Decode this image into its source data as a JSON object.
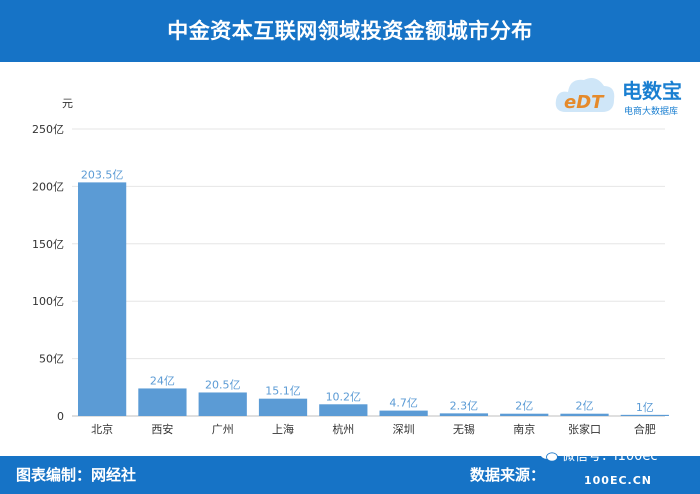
{
  "header": {
    "title": "中金资本互联网领域投资金额城市分布"
  },
  "logo": {
    "mark": "eDT",
    "name": "电数宝",
    "tagline": "电商大数据库"
  },
  "footer": {
    "left_label": "图表编制：网经社",
    "right_label": "数据来源：",
    "wechat_label": "微信号：i100ec",
    "watermark": "100EC.CN"
  },
  "colors": {
    "header_bg": "#1673c6",
    "bar": "#5b9bd5",
    "label": "#5b9bd5",
    "grid": "#e6e6e6"
  },
  "chart_data": {
    "type": "bar",
    "title": "中金资本互联网领域投资金额城市分布",
    "ylabel": "元",
    "xlabel": "",
    "ylim": [
      0,
      250
    ],
    "yticks": [
      0,
      50,
      100,
      150,
      200,
      250
    ],
    "ytick_labels": [
      "0",
      "50亿",
      "100亿",
      "150亿",
      "200亿",
      "250亿"
    ],
    "grid": true,
    "categories": [
      "北京",
      "西安",
      "广州",
      "上海",
      "杭州",
      "深圳",
      "无锡",
      "南京",
      "张家口",
      "合肥"
    ],
    "values": [
      203.5,
      24,
      20.5,
      15.1,
      10.2,
      4.7,
      2.3,
      2,
      2,
      1
    ],
    "value_labels": [
      "203.5亿",
      "24亿",
      "20.5亿",
      "15.1亿",
      "10.2亿",
      "4.7亿",
      "2.3亿",
      "2亿",
      "2亿",
      "1亿"
    ]
  }
}
